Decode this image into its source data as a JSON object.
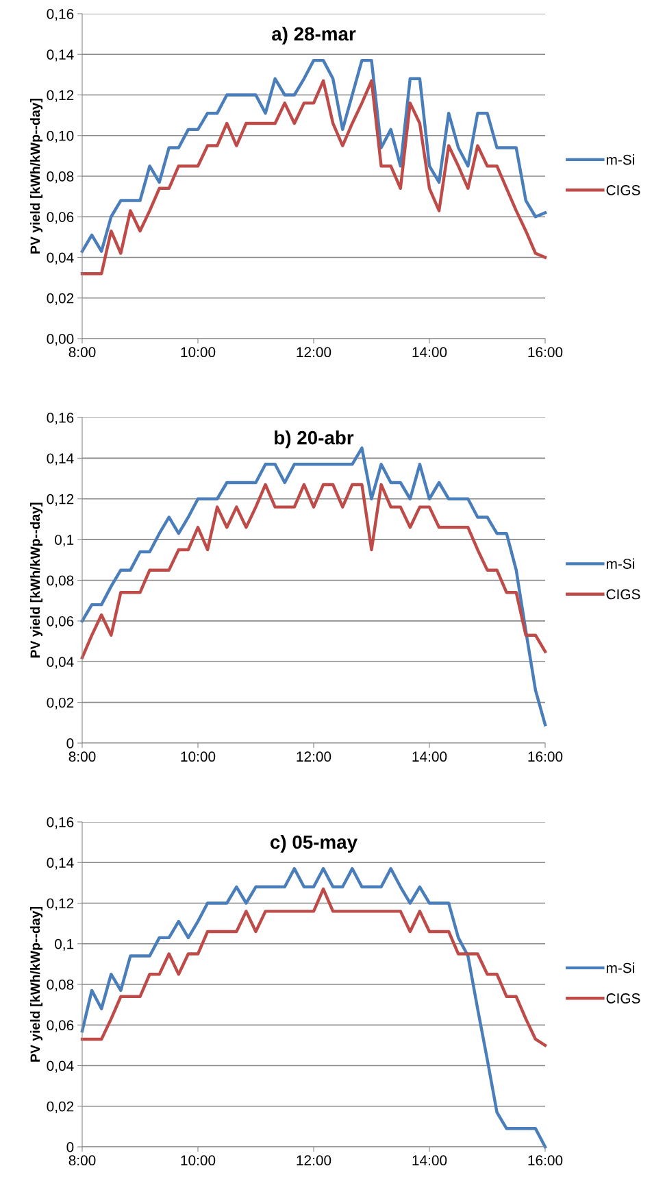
{
  "chart_data": [
    {
      "type": "line",
      "title": "a) 28-mar",
      "ylabel": "PV yield [kWh/kWp--day]",
      "grid": "y",
      "legend": "right",
      "line_style": "solid",
      "x": [
        8,
        8.1667,
        8.3333,
        8.5,
        8.6667,
        8.8333,
        9,
        9.1667,
        9.3333,
        9.5,
        9.6667,
        9.8333,
        10,
        10.1667,
        10.3333,
        10.5,
        10.6667,
        10.8333,
        11,
        11.1667,
        11.3333,
        11.5,
        11.6667,
        11.8333,
        12,
        12.1667,
        12.3333,
        12.5,
        12.6667,
        12.8333,
        13,
        13.1667,
        13.3333,
        13.5,
        13.6667,
        13.8333,
        14,
        14.1667,
        14.3333,
        14.5,
        14.6667,
        14.8333,
        15,
        15.1667,
        15.3333,
        15.5,
        15.6667,
        15.8333,
        16
      ],
      "xlim": [
        8,
        16
      ],
      "xticks": [
        {
          "value": 8,
          "label": "8:00"
        },
        {
          "value": 10,
          "label": "10:00"
        },
        {
          "value": 12,
          "label": "12:00"
        },
        {
          "value": 14,
          "label": "14:00"
        },
        {
          "value": 16,
          "label": "16:00"
        }
      ],
      "ylim": [
        0,
        0.16
      ],
      "yticks": [
        {
          "value": 0,
          "label": "0,00"
        },
        {
          "value": 0.02,
          "label": "0,02"
        },
        {
          "value": 0.04,
          "label": "0,04"
        },
        {
          "value": 0.06,
          "label": "0,06"
        },
        {
          "value": 0.08,
          "label": "0,08"
        },
        {
          "value": 0.1,
          "label": "0,10"
        },
        {
          "value": 0.12,
          "label": "0,12"
        },
        {
          "value": 0.14,
          "label": "0,14"
        },
        {
          "value": 0.16,
          "label": "0,16"
        }
      ],
      "series": [
        {
          "name": "m-Si",
          "color": "#4a7ebb",
          "values": [
            0.043,
            0.051,
            0.043,
            0.06,
            0.068,
            0.068,
            0.068,
            0.085,
            0.077,
            0.094,
            0.094,
            0.103,
            0.103,
            0.111,
            0.111,
            0.12,
            0.12,
            0.12,
            0.12,
            0.111,
            0.128,
            0.12,
            0.12,
            0.128,
            0.137,
            0.137,
            0.128,
            0.103,
            0.12,
            0.137,
            0.137,
            0.094,
            0.103,
            0.085,
            0.128,
            0.128,
            0.085,
            0.077,
            0.111,
            0.094,
            0.085,
            0.111,
            0.111,
            0.094,
            0.094,
            0.094,
            0.068,
            0.06,
            0.062
          ]
        },
        {
          "name": "CIGS",
          "color": "#be4b48",
          "values": [
            0.032,
            0.032,
            0.032,
            0.053,
            0.042,
            0.063,
            0.053,
            0.063,
            0.074,
            0.074,
            0.085,
            0.085,
            0.085,
            0.095,
            0.095,
            0.106,
            0.095,
            0.106,
            0.106,
            0.106,
            0.106,
            0.116,
            0.106,
            0.116,
            0.116,
            0.127,
            0.106,
            0.095,
            0.106,
            0.116,
            0.127,
            0.085,
            0.085,
            0.074,
            0.116,
            0.106,
            0.074,
            0.063,
            0.095,
            0.085,
            0.074,
            0.095,
            0.085,
            0.085,
            0.074,
            0.063,
            0.053,
            0.042,
            0.04
          ]
        }
      ]
    },
    {
      "type": "line",
      "title": "b) 20-abr",
      "ylabel": "PV yield [kWh/kWp--day]",
      "grid": "y",
      "legend": "right",
      "line_style": "solid",
      "x": [
        8,
        8.1667,
        8.3333,
        8.5,
        8.6667,
        8.8333,
        9,
        9.1667,
        9.3333,
        9.5,
        9.6667,
        9.8333,
        10,
        10.1667,
        10.3333,
        10.5,
        10.6667,
        10.8333,
        11,
        11.1667,
        11.3333,
        11.5,
        11.6667,
        11.8333,
        12,
        12.1667,
        12.3333,
        12.5,
        12.6667,
        12.8333,
        13,
        13.1667,
        13.3333,
        13.5,
        13.6667,
        13.8333,
        14,
        14.1667,
        14.3333,
        14.5,
        14.6667,
        14.8333,
        15,
        15.1667,
        15.3333,
        15.5,
        15.6667,
        15.8333,
        16
      ],
      "xlim": [
        8,
        16
      ],
      "xticks": [
        {
          "value": 8,
          "label": "8:00"
        },
        {
          "value": 10,
          "label": "10:00"
        },
        {
          "value": 12,
          "label": "12:00"
        },
        {
          "value": 14,
          "label": "14:00"
        },
        {
          "value": 16,
          "label": "16:00"
        }
      ],
      "ylim": [
        0,
        0.16
      ],
      "yticks": [
        0,
        {
          "value": 0.02,
          "label": "0,02"
        },
        {
          "value": 0.04,
          "label": "0,04"
        },
        {
          "value": 0.06,
          "label": "0,06"
        },
        {
          "value": 0.08,
          "label": "0,08"
        },
        {
          "value": 0.1,
          "label": "0,1"
        },
        {
          "value": 0.12,
          "label": "0,12"
        },
        {
          "value": 0.14,
          "label": "0,14"
        },
        {
          "value": 0.16,
          "label": "0,16"
        }
      ],
      "series": [
        {
          "name": "m-Si",
          "color": "#4a7ebb",
          "values": [
            0.06,
            0.068,
            0.068,
            0.077,
            0.085,
            0.085,
            0.094,
            0.094,
            0.103,
            0.111,
            0.103,
            0.111,
            0.12,
            0.12,
            0.12,
            0.128,
            0.128,
            0.128,
            0.128,
            0.137,
            0.137,
            0.128,
            0.137,
            0.137,
            0.137,
            0.137,
            0.137,
            0.137,
            0.137,
            0.145,
            0.12,
            0.137,
            0.128,
            0.128,
            0.12,
            0.137,
            0.12,
            0.128,
            0.12,
            0.12,
            0.12,
            0.111,
            0.111,
            0.103,
            0.103,
            0.085,
            0.055,
            0.026,
            0.009
          ]
        },
        {
          "name": "CIGS",
          "color": "#be4b48",
          "values": [
            0.042,
            0.053,
            0.063,
            0.053,
            0.074,
            0.074,
            0.074,
            0.085,
            0.085,
            0.085,
            0.095,
            0.095,
            0.106,
            0.095,
            0.116,
            0.106,
            0.116,
            0.106,
            0.116,
            0.127,
            0.116,
            0.116,
            0.116,
            0.127,
            0.116,
            0.127,
            0.127,
            0.116,
            0.127,
            0.127,
            0.095,
            0.127,
            0.116,
            0.116,
            0.106,
            0.116,
            0.116,
            0.106,
            0.106,
            0.106,
            0.106,
            0.095,
            0.085,
            0.085,
            0.074,
            0.074,
            0.053,
            0.053,
            0.045
          ]
        }
      ]
    },
    {
      "type": "line",
      "title": "c) 05-may",
      "ylabel": "PV yield [kWh/kWp--day]",
      "grid": "y",
      "legend": "right",
      "line_style": "solid",
      "x": [
        8,
        8.1667,
        8.3333,
        8.5,
        8.6667,
        8.8333,
        9,
        9.1667,
        9.3333,
        9.5,
        9.6667,
        9.8333,
        10,
        10.1667,
        10.3333,
        10.5,
        10.6667,
        10.8333,
        11,
        11.1667,
        11.3333,
        11.5,
        11.6667,
        11.8333,
        12,
        12.1667,
        12.3333,
        12.5,
        12.6667,
        12.8333,
        13,
        13.1667,
        13.3333,
        13.5,
        13.6667,
        13.8333,
        14,
        14.1667,
        14.3333,
        14.5,
        14.6667,
        14.8333,
        15,
        15.1667,
        15.3333,
        15.5,
        15.6667,
        15.8333,
        16
      ],
      "xlim": [
        8,
        16
      ],
      "xticks": [
        {
          "value": 8,
          "label": "8:00"
        },
        {
          "value": 10,
          "label": "10:00"
        },
        {
          "value": 12,
          "label": "12:00"
        },
        {
          "value": 14,
          "label": "14:00"
        },
        {
          "value": 16,
          "label": "16:00"
        }
      ],
      "ylim": [
        0,
        0.16
      ],
      "yticks": [
        0,
        {
          "value": 0.02,
          "label": "0,02"
        },
        {
          "value": 0.04,
          "label": "0,04"
        },
        {
          "value": 0.06,
          "label": "0,06"
        },
        {
          "value": 0.08,
          "label": "0,08"
        },
        {
          "value": 0.1,
          "label": "0,1"
        },
        {
          "value": 0.12,
          "label": "0,12"
        },
        {
          "value": 0.14,
          "label": "0,14"
        },
        {
          "value": 0.16,
          "label": "0,16"
        }
      ],
      "series": [
        {
          "name": "m-Si",
          "color": "#4a7ebb",
          "values": [
            0.057,
            0.077,
            0.068,
            0.085,
            0.077,
            0.094,
            0.094,
            0.094,
            0.103,
            0.103,
            0.111,
            0.103,
            0.111,
            0.12,
            0.12,
            0.12,
            0.128,
            0.12,
            0.128,
            0.128,
            0.128,
            0.128,
            0.137,
            0.128,
            0.128,
            0.137,
            0.128,
            0.128,
            0.137,
            0.128,
            0.128,
            0.128,
            0.137,
            0.128,
            0.12,
            0.128,
            0.12,
            0.12,
            0.12,
            0.103,
            0.094,
            0.068,
            0.043,
            0.017,
            0.009,
            0.009,
            0.009,
            0.009,
            0.0
          ]
        },
        {
          "name": "CIGS",
          "color": "#be4b48",
          "values": [
            0.053,
            0.053,
            0.053,
            0.063,
            0.074,
            0.074,
            0.074,
            0.085,
            0.085,
            0.095,
            0.085,
            0.095,
            0.095,
            0.106,
            0.106,
            0.106,
            0.106,
            0.116,
            0.106,
            0.116,
            0.116,
            0.116,
            0.116,
            0.116,
            0.116,
            0.127,
            0.116,
            0.116,
            0.116,
            0.116,
            0.116,
            0.116,
            0.116,
            0.116,
            0.106,
            0.116,
            0.106,
            0.106,
            0.106,
            0.095,
            0.095,
            0.095,
            0.085,
            0.085,
            0.074,
            0.074,
            0.063,
            0.053,
            0.05
          ]
        }
      ]
    }
  ]
}
